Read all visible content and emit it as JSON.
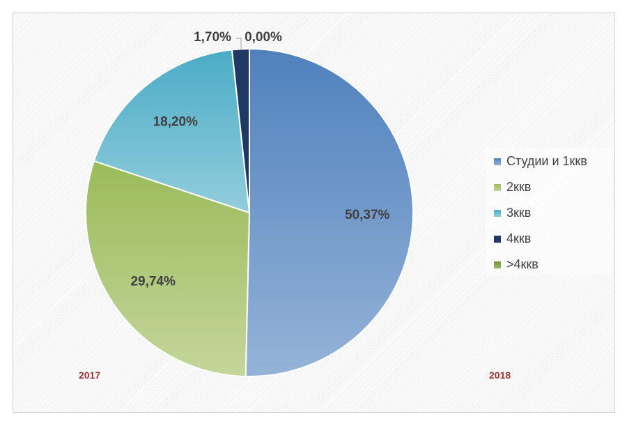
{
  "chart_data": {
    "type": "pie",
    "start": "top, clockwise",
    "slices": [
      {
        "name": "Студии и 1ккв",
        "value": 50.37,
        "label": "50,37%",
        "color": "#4f81bd",
        "color_light": "#95b3d7"
      },
      {
        "name": "2ккв",
        "value": 29.74,
        "label": "29,74%",
        "color": "#9bbb59",
        "color_light": "#c3d69b"
      },
      {
        "name": "3ккв",
        "value": 18.2,
        "label": "18,20%",
        "color": "#4bacc6",
        "color_light": "#92cddc"
      },
      {
        "name": "4ккв",
        "value": 1.7,
        "label": "1,70%",
        "color": "#1f3864",
        "color_light": "#1f3864"
      },
      {
        "name": ">4ккв",
        "value": 0.0,
        "label": "0,00%",
        "color": "#77933c",
        "color_light": "#9bbb59"
      }
    ],
    "legend_position": "right",
    "annotations": [
      "2017",
      "2018"
    ]
  }
}
